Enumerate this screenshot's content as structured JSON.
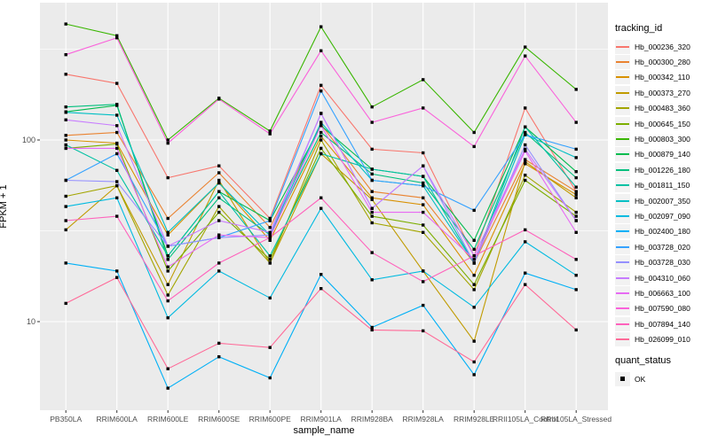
{
  "chart_data": {
    "type": "line",
    "title": "",
    "xlabel": "sample_name",
    "ylabel": "FPKM + 1",
    "y_scale": "log10",
    "ylim": [
      3.25,
      570
    ],
    "grid": true,
    "panel_bg": "#EBEBEB",
    "grid_color": "#FFFFFF",
    "marker": "black-square",
    "y_ticks": [
      {
        "label": "100",
        "value": 100
      },
      {
        "label": "10",
        "value": 10
      }
    ],
    "y_minor_gridlines": [
      316,
      31.6
    ],
    "x_categories": [
      "PB350LA",
      "RRIM600LA",
      "RRIM600LE",
      "RRIM600SE",
      "RRIM600PE",
      "RRIM901LA",
      "RRIM928BA",
      "RRIM928LA",
      "RRIM928LE",
      "RRII105LA_Control",
      "RRII105LA_Stressed"
    ],
    "legend": {
      "title": "tracking_id",
      "position": "right"
    },
    "quant_legend": {
      "title": "quant_status",
      "items": [
        {
          "label": "OK",
          "marker": "black-square"
        }
      ]
    },
    "series": [
      {
        "name": "Hb_000236_320",
        "color": "#F8766D",
        "values": [
          230,
          205,
          62,
          72,
          37,
          200,
          89,
          85,
          23,
          150,
          52
        ]
      },
      {
        "name": "Hb_000300_280",
        "color": "#EA8331",
        "values": [
          106,
          110,
          37,
          66,
          33,
          122,
          52,
          48,
          21,
          78,
          52
        ]
      },
      {
        "name": "Hb_000342_110",
        "color": "#D89000",
        "values": [
          100,
          96,
          30,
          58,
          28,
          105,
          48,
          44,
          18,
          74,
          50
        ]
      },
      {
        "name": "Hb_000373_270",
        "color": "#C09B00",
        "values": [
          32,
          56,
          16,
          60,
          21,
          84,
          47,
          19,
          7.8,
          76,
          48
        ]
      },
      {
        "name": "Hb_000483_360",
        "color": "#A3A500",
        "values": [
          49,
          56,
          14,
          43,
          21,
          100,
          35,
          31,
          15,
          64,
          40
        ]
      },
      {
        "name": "Hb_000645_150",
        "color": "#7CAE00",
        "values": [
          90,
          95,
          19,
          40,
          22,
          90,
          38,
          34,
          16,
          60,
          38
        ]
      },
      {
        "name": "Hb_000803_300",
        "color": "#39B600",
        "values": [
          435,
          375,
          100,
          170,
          112,
          420,
          152,
          215,
          110,
          325,
          190
        ]
      },
      {
        "name": "Hb_000879_140",
        "color": "#00BB4E",
        "values": [
          143,
          155,
          23,
          52,
          36,
          120,
          69,
          63,
          28,
          118,
          67
        ]
      },
      {
        "name": "Hb_001226_180",
        "color": "#00BF7D",
        "values": [
          152,
          157,
          22,
          48,
          30,
          110,
          65,
          58,
          25,
          110,
          62
        ]
      },
      {
        "name": "Hb_001811_150",
        "color": "#00C1A3",
        "values": [
          94,
          68,
          23,
          52,
          23,
          84,
          69,
          63,
          21,
          118,
          55
        ]
      },
      {
        "name": "Hb_002007_350",
        "color": "#00BFC4",
        "values": [
          142,
          137,
          31,
          58,
          30,
          125,
          60,
          56,
          21,
          107,
          80
        ]
      },
      {
        "name": "Hb_002097_090",
        "color": "#00BAE0",
        "values": [
          43,
          48,
          10.5,
          19,
          13.5,
          42,
          17,
          19,
          12,
          27.5,
          18
        ]
      },
      {
        "name": "Hb_002400_180",
        "color": "#00B0F6",
        "values": [
          21,
          19,
          4.3,
          6.4,
          4.9,
          18.2,
          9.3,
          12.3,
          5.1,
          18.5,
          15
        ]
      },
      {
        "name": "Hb_003728_020",
        "color": "#35A2FF",
        "values": [
          60,
          84,
          26,
          29,
          36,
          186,
          60,
          56,
          41,
          107,
          89
        ]
      },
      {
        "name": "Hb_003728_030",
        "color": "#9590FF",
        "values": [
          60,
          59,
          26,
          29,
          30,
          140,
          42,
          72,
          21,
          94,
          36
        ]
      },
      {
        "name": "Hb_004310_060",
        "color": "#C77CFF",
        "values": [
          129,
          120,
          26,
          36,
          31,
          140,
          42,
          72,
          23,
          89,
          36
        ]
      },
      {
        "name": "Hb_006663_100",
        "color": "#E76BF3",
        "values": [
          90,
          90,
          20,
          30,
          29,
          120,
          40,
          40,
          22,
          87,
          31
        ]
      },
      {
        "name": "Hb_007590_080",
        "color": "#FA62DB",
        "values": [
          295,
          365,
          96,
          168,
          108,
          310,
          125,
          150,
          92,
          290,
          125
        ]
      },
      {
        "name": "Hb_007894_140",
        "color": "#FF62BC",
        "values": [
          36,
          38,
          13,
          21,
          29,
          48,
          24,
          16.6,
          23,
          32,
          22
        ]
      },
      {
        "name": "Hb_026099_010",
        "color": "#FF6A98",
        "values": [
          12.6,
          17.5,
          5.5,
          7.6,
          7.2,
          15.2,
          9,
          8.9,
          6,
          16,
          9
        ]
      }
    ]
  }
}
